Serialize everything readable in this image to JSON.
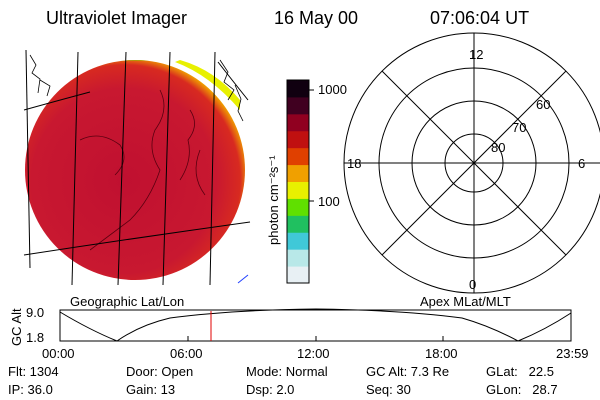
{
  "header": {
    "instrument": "Ultraviolet Imager",
    "date": "16 May 00",
    "time": "07:06:04 UT"
  },
  "colorbar": {
    "unit_label": "photon cm⁻²s⁻¹",
    "ticks": [
      "1000",
      "100"
    ],
    "colors": [
      "#e8f0f4",
      "#b8e8e8",
      "#40c8d8",
      "#20c060",
      "#60e000",
      "#e8f000",
      "#f0a000",
      "#e04000",
      "#c01010",
      "#900020",
      "#400020",
      "#100010"
    ]
  },
  "polar_plot": {
    "mlt_labels": {
      "top": "12",
      "left": "18",
      "right": "6",
      "bottom": "0"
    },
    "lat_labels": [
      "60",
      "70",
      "80"
    ]
  },
  "geo_label": "Geographic Lat/Lon",
  "apex_label": "Apex MLat/MLT",
  "altitude_plot": {
    "ylabel": "GC Alt",
    "yticks": [
      "9.0",
      "1.8"
    ],
    "xticks": [
      "00:00",
      "06:00",
      "12:00",
      "18:00",
      "23:59"
    ]
  },
  "info": {
    "flt": "Flt: 1304",
    "ip": "IP: 36.0",
    "door": "Door: Open",
    "gain": "Gain: 13",
    "mode": "Mode: Normal",
    "dsp": "Dsp:     2.0",
    "gcalt": "GC Alt: 7.3 Re",
    "seq": "Seq: 30",
    "glat": "GLat:   22.5",
    "glon": "GLon:   28.7"
  }
}
